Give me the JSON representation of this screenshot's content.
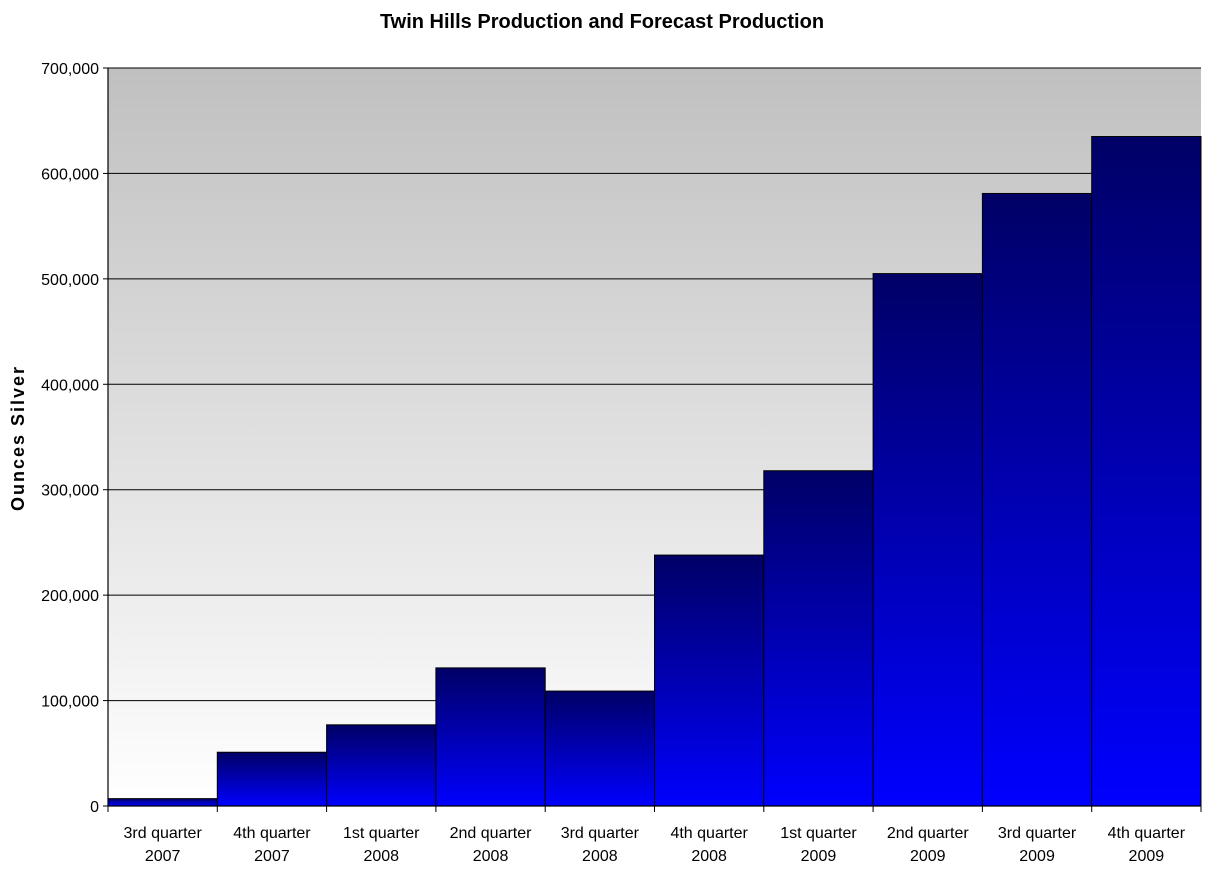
{
  "chart_data": {
    "type": "bar",
    "title": "Twin Hills Production and Forecast Production",
    "xlabel": "",
    "ylabel": "Ounces Silver",
    "ylim": [
      0,
      700000
    ],
    "yticks": [
      0,
      100000,
      200000,
      300000,
      400000,
      500000,
      600000,
      700000
    ],
    "ytick_labels": [
      "0",
      "100,000",
      "200,000",
      "300,000",
      "400,000",
      "500,000",
      "600,000",
      "700,000"
    ],
    "grid": true,
    "legend": "none",
    "categories": [
      [
        "3rd quarter",
        "2007"
      ],
      [
        "4th quarter",
        "2007"
      ],
      [
        "1st quarter",
        "2008"
      ],
      [
        "2nd quarter",
        "2008"
      ],
      [
        "3rd quarter",
        "2008"
      ],
      [
        "4th quarter",
        "2008"
      ],
      [
        "1st quarter",
        "2009"
      ],
      [
        "2nd quarter",
        "2009"
      ],
      [
        "3rd quarter",
        "2009"
      ],
      [
        "4th quarter",
        "2009"
      ]
    ],
    "values": [
      7000,
      51000,
      77000,
      131000,
      109000,
      238000,
      318000,
      505000,
      581000,
      635000
    ],
    "colors": {
      "bar_top": "#000066",
      "bar_bottom": "#0000ff",
      "plot_top": "#c0c0c0",
      "plot_bottom": "#ffffff"
    }
  }
}
